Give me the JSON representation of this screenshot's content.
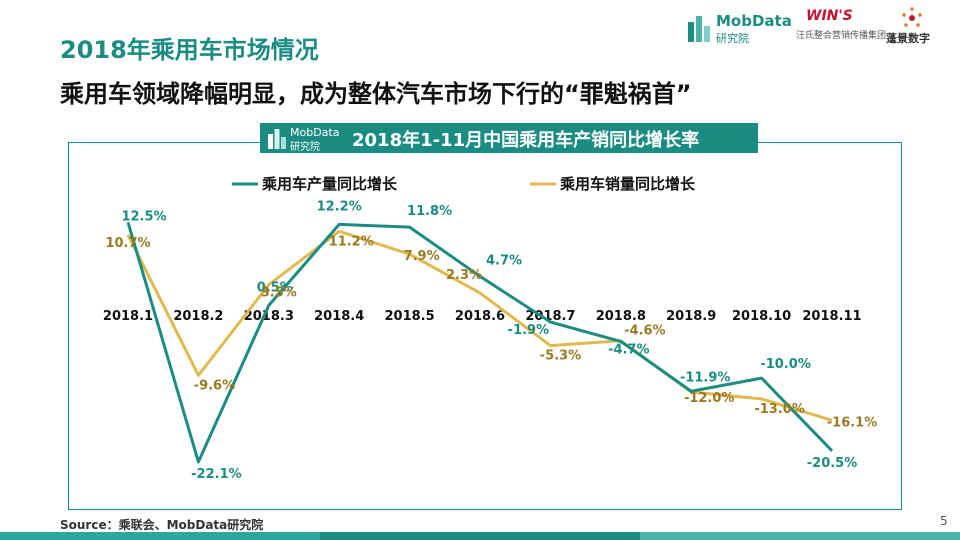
{
  "header": {
    "title": "2018年乘用车市场情况",
    "subtitle": "乘用车领域降幅明显，成为整体汽车市场下行的“罪魁祸首”"
  },
  "logos": {
    "mobdata_name": "MobData",
    "mobdata_sub": "研究院",
    "wins_name": "WIN'S",
    "wins_sub": "汪氏整合营销传播集团",
    "pengjing_name": "蓬景数字"
  },
  "chart_header": {
    "logo_name": "MobData",
    "logo_sub": "研究院"
  },
  "chart_data": {
    "type": "line",
    "title": "2018年1-11月中国乘用车产销同比增长率",
    "categories": [
      "2018.1",
      "2018.2",
      "2018.3",
      "2018.4",
      "2018.5",
      "2018.6",
      "2018.7",
      "2018.8",
      "2018.9",
      "2018.10",
      "2018.11"
    ],
    "series": [
      {
        "name": "乘用车产量同比增长",
        "color": "#1a8c82",
        "values": [
          12.5,
          -22.1,
          0.5,
          12.2,
          11.8,
          4.7,
          -1.9,
          -4.7,
          -11.9,
          -10.0,
          -20.5
        ],
        "labels": [
          "12.5%",
          "-22.1%",
          "0.5%",
          "12.2%",
          "11.8%",
          "4.7%",
          "-1.9%",
          "-4.7%",
          "-11.9%",
          "-10.0%",
          "-20.5%"
        ]
      },
      {
        "name": "乘用车销量同比增长",
        "color": "#e2b94f",
        "label_color": "#9a7a20",
        "values": [
          10.7,
          -9.6,
          3.5,
          11.2,
          7.9,
          2.3,
          -5.3,
          -4.6,
          -12.0,
          -13.0,
          -16.1
        ],
        "labels": [
          "10.7%",
          "-9.6%",
          "3.5%",
          "11.2%",
          "7.9%",
          "2.3%",
          "-5.3%",
          "-4.6%",
          "-12.0%",
          "-13.0%",
          "-16.1%"
        ]
      }
    ],
    "ylim": [
      -25,
      15
    ],
    "grid": false,
    "legend": "top"
  },
  "footer": {
    "source": "Source：乘联会、MobData研究院",
    "page_number": "5"
  },
  "colors": {
    "accent": "#1a8c82",
    "secondary": "#e2b94f"
  }
}
